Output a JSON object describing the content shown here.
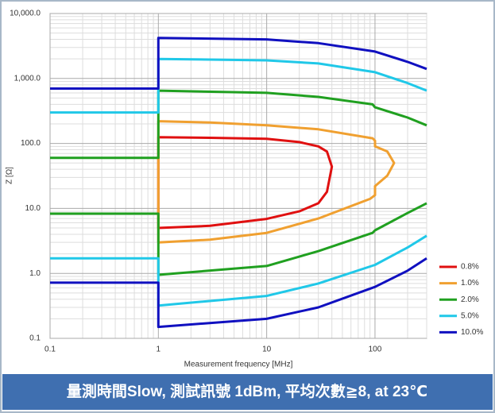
{
  "chart_data": {
    "type": "line",
    "caption": "量測時間Slow, 測試訊號 1dBm, 平均次數≧8, at 23℃",
    "xlabel": "Measurement frequency [MHz]",
    "ylabel": "Z [Ω]",
    "xscale": "log",
    "yscale": "log",
    "grid": true,
    "minor_grid": true,
    "legend": "right",
    "xlim": [
      0.1,
      300
    ],
    "ylim": [
      0.1,
      10000
    ],
    "xticks": [
      0.1,
      1,
      10,
      100
    ],
    "yticks": [
      0.1,
      {
        "value": 1,
        "label": "1.0"
      },
      {
        "value": 10,
        "label": "10.0"
      },
      {
        "value": 100,
        "label": "100.0"
      },
      {
        "value": 1000,
        "label": "1,000.0"
      },
      {
        "value": 10000,
        "label": "10,000.0"
      }
    ],
    "series": [
      {
        "name": "0.8%",
        "color": "#e01010",
        "x": [
          1,
          3,
          10,
          20,
          30,
          36,
          40,
          36,
          30,
          20,
          10,
          3,
          1,
          1
        ],
        "values": [
          5,
          5.4,
          6.9,
          9,
          12,
          18,
          44,
          75,
          90,
          105,
          118,
          122,
          125,
          5
        ]
      },
      {
        "name": "1.0%",
        "color": "#f0a030",
        "x": [
          1,
          3,
          10,
          30,
          90,
          100,
          100,
          130,
          150,
          130,
          100,
          100,
          95,
          30,
          10,
          3,
          1,
          1
        ],
        "values": [
          3,
          3.3,
          4.2,
          7,
          14,
          16,
          22,
          32,
          50,
          75,
          90,
          110,
          120,
          165,
          190,
          210,
          220,
          3
        ]
      },
      {
        "name": "2.0%",
        "color": "#20a020",
        "x": [
          0.1,
          1,
          1,
          10,
          30,
          95,
          100,
          200,
          300,
          null,
          0.1,
          1,
          1,
          10,
          30,
          95,
          100,
          200,
          300
        ],
        "values": [
          8.3,
          8.3,
          0.95,
          1.3,
          2.2,
          4.2,
          4.6,
          8.5,
          12,
          null,
          60,
          60,
          650,
          600,
          520,
          400,
          360,
          250,
          190
        ]
      },
      {
        "name": "5.0%",
        "color": "#20c8e8",
        "x": [
          0.1,
          1,
          1,
          10,
          30,
          100,
          200,
          300,
          null,
          0.1,
          1,
          1,
          10,
          30,
          100,
          200,
          300
        ],
        "values": [
          1.7,
          1.7,
          0.32,
          0.45,
          0.7,
          1.35,
          2.5,
          3.8,
          null,
          300,
          300,
          2000,
          1900,
          1700,
          1250,
          850,
          650
        ]
      },
      {
        "name": "10.0%",
        "color": "#1010c0",
        "x": [
          0.1,
          1,
          1,
          10,
          30,
          100,
          200,
          300,
          null,
          0.1,
          1,
          1,
          10,
          30,
          100,
          200,
          300
        ],
        "values": [
          0.72,
          0.72,
          0.15,
          0.2,
          0.3,
          0.62,
          1.1,
          1.7,
          null,
          700,
          700,
          4200,
          4000,
          3500,
          2600,
          1800,
          1400
        ]
      }
    ]
  }
}
